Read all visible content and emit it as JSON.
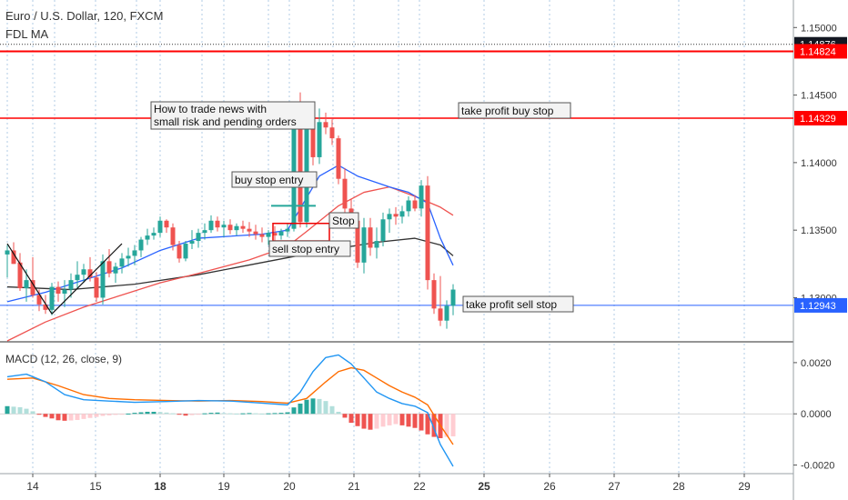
{
  "header": {
    "title": "Euro / U.S. Dollar, 120, FXCM",
    "indicator": "FDL MA"
  },
  "price_axis": {
    "ticks": [
      "1.15000",
      "1.14500",
      "1.14000",
      "1.13500",
      "1.13000"
    ],
    "badges": [
      {
        "text": "1.14876",
        "style": "dark"
      },
      {
        "text": "1.14824",
        "style": "red"
      },
      {
        "text": "1.14329",
        "style": "red"
      },
      {
        "text": "1.12943",
        "style": "blue"
      }
    ]
  },
  "macd_axis": {
    "label": "MACD (12, 26, close, 9)",
    "ticks": [
      "0.0020",
      "0.0000",
      "-0.0020"
    ]
  },
  "time_axis": {
    "ticks": [
      "14",
      "15",
      "18",
      "19",
      "20",
      "21",
      "22",
      "25",
      "26",
      "27",
      "28",
      "29"
    ],
    "bold": [
      "18",
      "25"
    ]
  },
  "annotations": {
    "note": [
      "How to trade news with",
      "small risk and pending orders"
    ],
    "buy_stop_entry": "buy stop entry",
    "stop": "Stop",
    "sell_stop_entry": "sell stop entry",
    "tp_buy": "take profit buy stop",
    "tp_sell": "take profit sell stop"
  },
  "colors": {
    "up": "#26a69a",
    "down": "#ef5350",
    "hline_red": "#ff0000",
    "hline_blue": "#2962ff",
    "ma_blue": "#2962ff",
    "ma_red": "#ef5350",
    "ma_black": "#333333",
    "macd_line": "#2196f3",
    "signal_line": "#ff6d00"
  },
  "chart_data": {
    "type": "candlestick",
    "title": "Euro / U.S. Dollar, 120, FXCM",
    "y_range": [
      1.1268,
      1.1515
    ],
    "levels": {
      "last_price": 1.14876,
      "upper_level": 1.14824,
      "take_profit_buy_stop": 1.14329,
      "take_profit_sell_stop": 1.12943,
      "buy_stop_entry": 1.1368,
      "sell_stop_entry": 1.1333,
      "stop_box": [
        1.1342,
        1.1355
      ]
    },
    "candles": [
      [
        1.1332,
        1.1339,
        1.1315,
        1.1335
      ],
      [
        1.1335,
        1.1341,
        1.1325,
        1.1325
      ],
      [
        1.1326,
        1.1333,
        1.1305,
        1.1307
      ],
      [
        1.1307,
        1.1321,
        1.1297,
        1.1313
      ],
      [
        1.1313,
        1.133,
        1.13,
        1.1302
      ],
      [
        1.1302,
        1.1306,
        1.129,
        1.1295
      ],
      [
        1.1295,
        1.1302,
        1.1288,
        1.1291
      ],
      [
        1.1291,
        1.1311,
        1.1287,
        1.1308
      ],
      [
        1.1308,
        1.1312,
        1.1297,
        1.1303
      ],
      [
        1.1303,
        1.1313,
        1.1293,
        1.1306
      ],
      [
        1.1306,
        1.1318,
        1.13,
        1.1313
      ],
      [
        1.1313,
        1.1327,
        1.1307,
        1.1317
      ],
      [
        1.1317,
        1.1325,
        1.1311,
        1.1321
      ],
      [
        1.1321,
        1.133,
        1.1312,
        1.1315
      ],
      [
        1.1315,
        1.1319,
        1.1297,
        1.13
      ],
      [
        1.13,
        1.1332,
        1.1295,
        1.1327
      ],
      [
        1.1327,
        1.1336,
        1.1315,
        1.1318
      ],
      [
        1.1318,
        1.1326,
        1.1311,
        1.1323
      ],
      [
        1.1323,
        1.1333,
        1.1318,
        1.1329
      ],
      [
        1.1329,
        1.1337,
        1.1323,
        1.1331
      ],
      [
        1.1331,
        1.1339,
        1.1324,
        1.1335
      ],
      [
        1.1335,
        1.1345,
        1.133,
        1.1343
      ],
      [
        1.1343,
        1.1351,
        1.1339,
        1.1346
      ],
      [
        1.1346,
        1.1352,
        1.1343,
        1.1348
      ],
      [
        1.1348,
        1.136,
        1.1345,
        1.1357
      ],
      [
        1.1357,
        1.1358,
        1.1348,
        1.1352
      ],
      [
        1.1352,
        1.1355,
        1.1335,
        1.1339
      ],
      [
        1.1339,
        1.1342,
        1.1326,
        1.1329
      ],
      [
        1.1329,
        1.1342,
        1.1327,
        1.134
      ],
      [
        1.134,
        1.135,
        1.1336,
        1.1342
      ],
      [
        1.1342,
        1.1351,
        1.1337,
        1.1348
      ],
      [
        1.1348,
        1.1355,
        1.1343,
        1.135
      ],
      [
        1.135,
        1.1361,
        1.1348,
        1.1357
      ],
      [
        1.1357,
        1.136,
        1.1349,
        1.1352
      ],
      [
        1.1352,
        1.1357,
        1.1345,
        1.1354
      ],
      [
        1.1354,
        1.1358,
        1.1347,
        1.135
      ],
      [
        1.135,
        1.1355,
        1.1346,
        1.1353
      ],
      [
        1.1353,
        1.1357,
        1.1348,
        1.1351
      ],
      [
        1.1351,
        1.1356,
        1.1345,
        1.1349
      ],
      [
        1.1349,
        1.1354,
        1.1343,
        1.1347
      ],
      [
        1.1347,
        1.1352,
        1.1341,
        1.1345
      ],
      [
        1.1345,
        1.135,
        1.1339,
        1.1348
      ],
      [
        1.1348,
        1.1353,
        1.1342,
        1.1346
      ],
      [
        1.1346,
        1.1351,
        1.1343,
        1.1349
      ],
      [
        1.1349,
        1.1355,
        1.1345,
        1.1351
      ],
      [
        1.1351,
        1.1432,
        1.1349,
        1.1425
      ],
      [
        1.1425,
        1.1452,
        1.1352,
        1.1356
      ],
      [
        1.1356,
        1.1438,
        1.1352,
        1.1434
      ],
      [
        1.1434,
        1.144,
        1.1398,
        1.1404
      ],
      [
        1.1404,
        1.144,
        1.1399,
        1.143
      ],
      [
        1.143,
        1.1437,
        1.1421,
        1.1426
      ],
      [
        1.1426,
        1.1432,
        1.1413,
        1.1418
      ],
      [
        1.1418,
        1.142,
        1.1384,
        1.1388
      ],
      [
        1.1388,
        1.1396,
        1.1362,
        1.1366
      ],
      [
        1.1366,
        1.1373,
        1.1352,
        1.1357
      ],
      [
        1.1357,
        1.1361,
        1.1322,
        1.1326
      ],
      [
        1.1326,
        1.1359,
        1.1318,
        1.1352
      ],
      [
        1.1352,
        1.1359,
        1.1331,
        1.1337
      ],
      [
        1.1337,
        1.1352,
        1.1329,
        1.1342
      ],
      [
        1.1342,
        1.1363,
        1.1338,
        1.1358
      ],
      [
        1.1358,
        1.1366,
        1.1348,
        1.1362
      ],
      [
        1.1362,
        1.1367,
        1.1354,
        1.136
      ],
      [
        1.136,
        1.1368,
        1.1355,
        1.1364
      ],
      [
        1.1364,
        1.1375,
        1.136,
        1.1372
      ],
      [
        1.1372,
        1.1376,
        1.1364,
        1.1366
      ],
      [
        1.1366,
        1.1387,
        1.136,
        1.1383
      ],
      [
        1.1383,
        1.139,
        1.1306,
        1.1313
      ],
      [
        1.1313,
        1.1318,
        1.1288,
        1.1292
      ],
      [
        1.1292,
        1.1316,
        1.1279,
        1.1283
      ],
      [
        1.1283,
        1.1298,
        1.1277,
        1.1294
      ],
      [
        1.1294,
        1.131,
        1.1287,
        1.1306
      ]
    ],
    "ma_blue": [
      [
        0,
        1.1297
      ],
      [
        6,
        1.1304
      ],
      [
        12,
        1.1313
      ],
      [
        18,
        1.1322
      ],
      [
        24,
        1.1335
      ],
      [
        30,
        1.1344
      ],
      [
        40,
        1.1347
      ],
      [
        44,
        1.135
      ],
      [
        47,
        1.1374
      ],
      [
        49,
        1.139
      ],
      [
        52,
        1.1398
      ],
      [
        55,
        1.139
      ],
      [
        60,
        1.1382
      ],
      [
        63,
        1.1378
      ],
      [
        66,
        1.137
      ],
      [
        68,
        1.1344
      ],
      [
        70,
        1.1324
      ]
    ],
    "ma_red": [
      [
        0,
        1.1268
      ],
      [
        6,
        1.1282
      ],
      [
        12,
        1.1293
      ],
      [
        18,
        1.1302
      ],
      [
        24,
        1.1311
      ],
      [
        30,
        1.1318
      ],
      [
        38,
        1.1328
      ],
      [
        44,
        1.1338
      ],
      [
        47,
        1.1349
      ],
      [
        52,
        1.1368
      ],
      [
        56,
        1.1378
      ],
      [
        60,
        1.1382
      ],
      [
        64,
        1.1375
      ],
      [
        68,
        1.1367
      ],
      [
        70,
        1.1361
      ]
    ],
    "ma_black": [
      [
        0,
        1.1308
      ],
      [
        10,
        1.1306
      ],
      [
        20,
        1.131
      ],
      [
        30,
        1.1317
      ],
      [
        40,
        1.1326
      ],
      [
        50,
        1.1335
      ],
      [
        58,
        1.1341
      ],
      [
        64,
        1.1344
      ],
      [
        68,
        1.1339
      ],
      [
        70,
        1.1331
      ]
    ],
    "macd": {
      "y_range": [
        -0.0023,
        0.0026
      ],
      "macd_line": [
        [
          0,
          0.00145
        ],
        [
          3,
          0.00155
        ],
        [
          6,
          0.00125
        ],
        [
          9,
          0.00075
        ],
        [
          12,
          0.00055
        ],
        [
          16,
          0.0005
        ],
        [
          20,
          0.00045
        ],
        [
          25,
          0.00048
        ],
        [
          30,
          0.00052
        ],
        [
          35,
          0.0005
        ],
        [
          40,
          0.00042
        ],
        [
          44,
          0.00035
        ],
        [
          46,
          0.00085
        ],
        [
          48,
          0.00165
        ],
        [
          50,
          0.0022
        ],
        [
          52,
          0.0023
        ],
        [
          54,
          0.00195
        ],
        [
          56,
          0.0014
        ],
        [
          58,
          0.00085
        ],
        [
          60,
          0.0006
        ],
        [
          62,
          0.0004
        ],
        [
          64,
          0.0003
        ],
        [
          66,
          5e-05
        ],
        [
          68,
          -0.0012
        ],
        [
          70,
          -0.00205
        ]
      ],
      "signal_line": [
        [
          0,
          0.00135
        ],
        [
          4,
          0.0014
        ],
        [
          8,
          0.0011
        ],
        [
          12,
          0.00075
        ],
        [
          16,
          0.0006
        ],
        [
          20,
          0.00055
        ],
        [
          25,
          0.00052
        ],
        [
          30,
          0.0005
        ],
        [
          35,
          0.00052
        ],
        [
          40,
          0.00048
        ],
        [
          44,
          0.00042
        ],
        [
          47,
          0.0006
        ],
        [
          50,
          0.00125
        ],
        [
          52,
          0.00165
        ],
        [
          54,
          0.0018
        ],
        [
          56,
          0.0017
        ],
        [
          58,
          0.0014
        ],
        [
          60,
          0.0011
        ],
        [
          62,
          0.00085
        ],
        [
          64,
          0.00065
        ],
        [
          66,
          0.00035
        ],
        [
          68,
          -0.00045
        ],
        [
          70,
          -0.0012
        ]
      ],
      "histogram": [
        0.0003,
        0.00028,
        0.00026,
        0.0002,
        0.0001,
        -2e-05,
        -0.00012,
        -0.00018,
        -0.00025,
        -0.00027,
        -0.00026,
        -0.00024,
        -0.0002,
        -0.00016,
        -0.00012,
        -8e-05,
        -6e-05,
        -4e-05,
        -2e-05,
        1e-05,
        4e-05,
        6e-05,
        8e-05,
        8e-05,
        7e-05,
        5e-05,
        2e-05,
        -3e-05,
        -7e-05,
        -5e-05,
        -2e-05,
        2e-05,
        4e-05,
        5e-05,
        3e-05,
        2e-05,
        1e-05,
        2e-05,
        3e-05,
        2e-05,
        1e-05,
        2e-05,
        3e-05,
        4e-05,
        6e-05,
        0.00025,
        0.0004,
        0.00055,
        0.0006,
        0.00058,
        0.0005,
        0.0003,
        8e-05,
        -0.00015,
        -0.00035,
        -0.00048,
        -0.00058,
        -0.00062,
        -0.00058,
        -0.0005,
        -0.00045,
        -0.0004,
        -0.00045,
        -0.0005,
        -0.00055,
        -0.00065,
        -0.0008,
        -0.0009,
        -0.00095,
        -0.0009,
        -0.00088
      ]
    }
  }
}
